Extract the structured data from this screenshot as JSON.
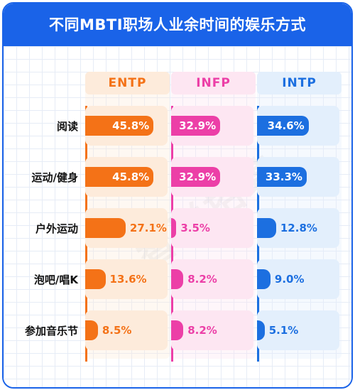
{
  "title": "不同MBTI职场人业余时间的娱乐方式",
  "watermark": "智联招聘",
  "colors": {
    "brand": "#1a63e8",
    "ENTP": "#f47217",
    "INFP": "#ec3fa7",
    "INTP": "#1c6fe0",
    "ENTP_light": "#fdebdb",
    "INFP_light": "#fde6f2",
    "INTP_light": "#e3effc"
  },
  "chart_data": {
    "type": "bar",
    "title": "不同MBTI职场人业余时间的娱乐方式",
    "categories": [
      "阅读",
      "运动/健身",
      "户外运动",
      "泡吧/唱K",
      "参加音乐节"
    ],
    "series": [
      {
        "name": "ENTP",
        "values": [
          45.8,
          45.8,
          27.1,
          13.6,
          8.5
        ],
        "labels": [
          "45.8%",
          "45.8%",
          "27.1%",
          "13.6%",
          "8.5%"
        ]
      },
      {
        "name": "INFP",
        "values": [
          32.9,
          32.9,
          3.5,
          8.2,
          8.2
        ],
        "labels": [
          "32.9%",
          "32.9%",
          "3.5%",
          "8.2%",
          "8.2%"
        ]
      },
      {
        "name": "INTP",
        "values": [
          34.6,
          33.3,
          12.8,
          9.0,
          5.1
        ],
        "labels": [
          "34.6%",
          "33.3%",
          "12.8%",
          "9.0%",
          "5.1%"
        ]
      }
    ],
    "unit": "%",
    "xlabel": "",
    "ylabel": "",
    "legend": "top"
  }
}
